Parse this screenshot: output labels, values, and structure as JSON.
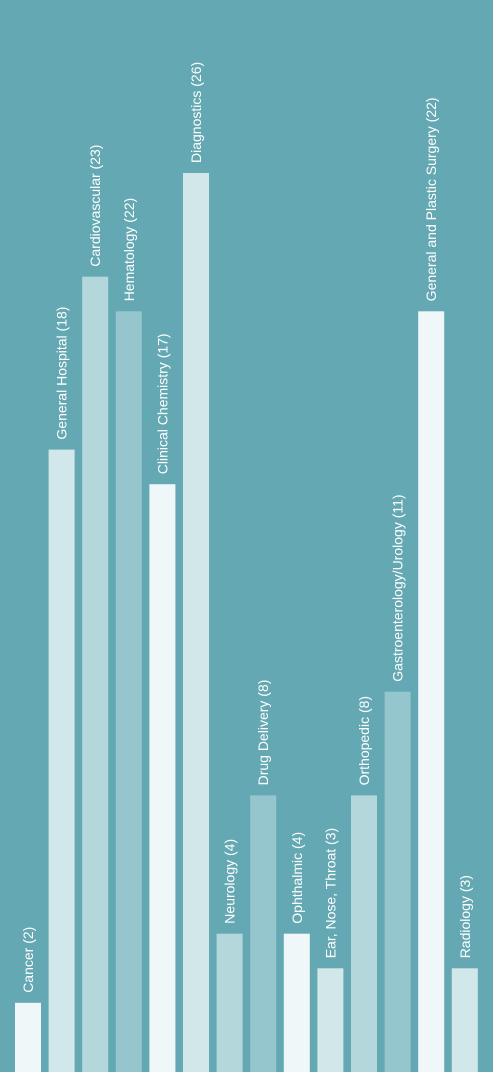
{
  "chart_data": {
    "type": "bar",
    "orientation": "vertical",
    "title": "",
    "xlabel": "",
    "ylabel": "",
    "ylim": [
      0,
      26
    ],
    "grid": false,
    "legend": "none",
    "categories": [
      "Cancer (2)",
      "General Hospital (18)",
      "Cardiovascular (23)",
      "Hematology (22)",
      "Clinical Chemistry (17)",
      "Diagnostics (26)",
      "Neurology (4)",
      "Drug Delivery (8)",
      "Ophthalmic (4)",
      "Ear, Nose, Throat (3)",
      "Orthopedic (8)",
      "Gastroenterology/Urology (11)",
      "General and Plastic Surgery (22)",
      "Radiology (3)"
    ],
    "values": [
      2,
      18,
      23,
      22,
      17,
      26,
      4,
      8,
      4,
      3,
      8,
      11,
      22,
      3
    ],
    "bar_colors": [
      "#f0f7f8",
      "#d2e7ea",
      "#b4d7dc",
      "#96c6cd",
      "#f0f7f8",
      "#d2e7ea",
      "#b4d7dc",
      "#96c6cd",
      "#f0f7f8",
      "#d2e7ea",
      "#b4d7dc",
      "#96c6cd",
      "#f0f7f8",
      "#d2e7ea"
    ],
    "background_color": "#64a8b3",
    "label_color": "#ffffff"
  }
}
